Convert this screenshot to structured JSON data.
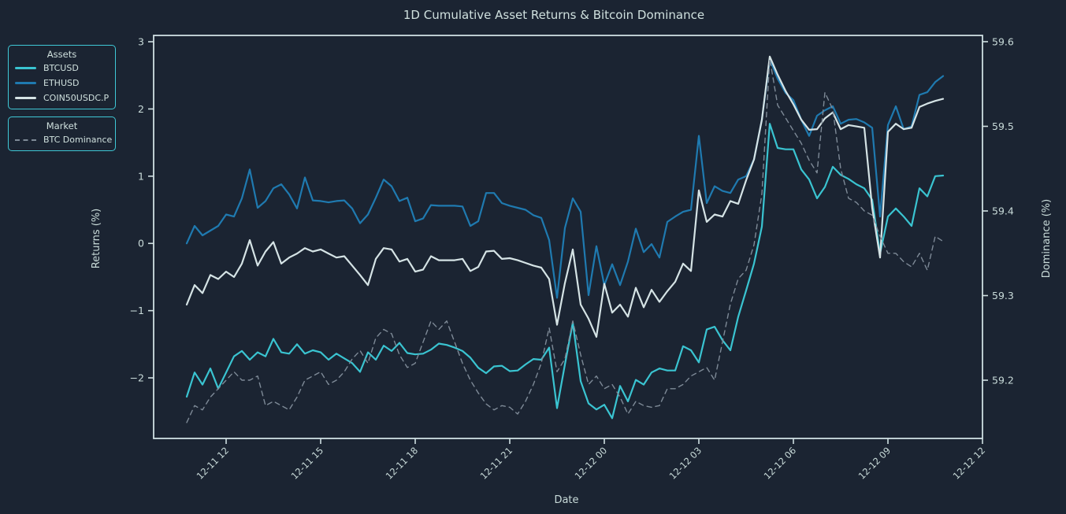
{
  "title": "1D Cumulative Asset Returns & Bitcoin Dominance",
  "colors": {
    "background": "#1b2432",
    "spine": "#cfdfe1",
    "tick_text": "#c9dbd9",
    "title_text": "#cfe0de",
    "legend_border": "#3fc8d6",
    "legend_text": "#cfe0dd"
  },
  "legend": {
    "assets": {
      "title": "Assets",
      "items": [
        {
          "label": "BTCUSD",
          "color": "#3ac4d1",
          "style": "solid"
        },
        {
          "label": "ETHUSD",
          "color": "#1f7ab0",
          "style": "solid"
        },
        {
          "label": "COIN50USDC.P",
          "color": "#d5e3e5",
          "style": "solid"
        }
      ]
    },
    "market": {
      "title": "Market",
      "items": [
        {
          "label": "BTC Dominance",
          "color": "#7e8a97",
          "style": "dashed"
        }
      ]
    }
  },
  "axes": {
    "x": {
      "label": "Date",
      "tick_hours": [
        12,
        15,
        18,
        21,
        24,
        27,
        30,
        33,
        36
      ],
      "tick_labels": [
        "12-11 12",
        "12-11 15",
        "12-11 18",
        "12-11 21",
        "12-12 00",
        "12-12 03",
        "12-12 06",
        "12-12 09",
        "12-12 12"
      ]
    },
    "left": {
      "label": "Returns (%)",
      "tick_values": [
        3,
        2,
        1,
        0,
        -1,
        -2
      ],
      "tick_labels": [
        "3",
        "2",
        "1",
        "0",
        "−1",
        "−2"
      ]
    },
    "right": {
      "label": "Dominance (%)",
      "tick_values": [
        59.6,
        59.5,
        59.4,
        59.3,
        59.2
      ],
      "tick_labels": [
        "59.6",
        "59.5",
        "59.4",
        "59.3",
        "59.2"
      ]
    }
  },
  "chart_data": {
    "type": "line",
    "x_unit": "hours since 12-11 00:00",
    "x_start_hour": 10.75,
    "x_step_hour": 0.25,
    "x_range_hours": [
      9.7,
      36.0
    ],
    "left_ylim": [
      -2.901,
      3.094
    ],
    "right_ylim": [
      59.1312,
      59.6074
    ],
    "grid": false,
    "legend_position": "outside-left",
    "series": [
      {
        "name": "BTCUSD",
        "axis": "left",
        "color": "#3ac4d1",
        "dash": null,
        "width": 2.2,
        "values": [
          -2.28,
          -1.92,
          -2.1,
          -1.86,
          -2.16,
          -1.92,
          -1.68,
          -1.6,
          -1.73,
          -1.62,
          -1.68,
          -1.42,
          -1.62,
          -1.64,
          -1.5,
          -1.64,
          -1.59,
          -1.62,
          -1.73,
          -1.64,
          -1.71,
          -1.78,
          -1.91,
          -1.62,
          -1.73,
          -1.52,
          -1.6,
          -1.48,
          -1.63,
          -1.65,
          -1.64,
          -1.58,
          -1.49,
          -1.51,
          -1.55,
          -1.6,
          -1.7,
          -1.85,
          -1.93,
          -1.83,
          -1.82,
          -1.9,
          -1.89,
          -1.8,
          -1.72,
          -1.73,
          -1.55,
          -2.45,
          -1.8,
          -1.18,
          -2.05,
          -2.38,
          -2.47,
          -2.4,
          -2.6,
          -2.12,
          -2.35,
          -2.03,
          -2.1,
          -1.92,
          -1.86,
          -1.89,
          -1.89,
          -1.53,
          -1.59,
          -1.77,
          -1.28,
          -1.24,
          -1.44,
          -1.59,
          -1.09,
          -0.7,
          -0.3,
          0.25,
          1.78,
          1.42,
          1.4,
          1.4,
          1.1,
          0.95,
          0.67,
          0.84,
          1.14,
          1.02,
          0.96,
          0.88,
          0.82,
          0.65,
          -0.15,
          0.4,
          0.52,
          0.4,
          0.26,
          0.82,
          0.7,
          1.0,
          1.01
        ]
      },
      {
        "name": "ETHUSD",
        "axis": "left",
        "color": "#1f7ab0",
        "dash": null,
        "width": 2.2,
        "values": [
          0.0,
          0.26,
          0.12,
          0.19,
          0.26,
          0.43,
          0.4,
          0.67,
          1.1,
          0.53,
          0.63,
          0.82,
          0.88,
          0.73,
          0.52,
          0.98,
          0.64,
          0.63,
          0.61,
          0.63,
          0.64,
          0.52,
          0.3,
          0.43,
          0.68,
          0.95,
          0.85,
          0.63,
          0.68,
          0.33,
          0.37,
          0.57,
          0.56,
          0.56,
          0.56,
          0.55,
          0.26,
          0.33,
          0.75,
          0.75,
          0.6,
          0.56,
          0.53,
          0.5,
          0.42,
          0.38,
          0.05,
          -0.81,
          0.23,
          0.67,
          0.47,
          -0.77,
          -0.04,
          -0.62,
          -0.31,
          -0.62,
          -0.27,
          0.22,
          -0.13,
          -0.01,
          -0.21,
          0.32,
          0.4,
          0.47,
          0.5,
          1.6,
          0.6,
          0.85,
          0.78,
          0.75,
          0.95,
          1.0,
          1.25,
          1.84,
          2.74,
          2.45,
          2.24,
          2.13,
          1.84,
          1.6,
          1.9,
          1.98,
          2.04,
          1.78,
          1.84,
          1.85,
          1.8,
          1.72,
          0.4,
          1.76,
          2.04,
          1.7,
          1.74,
          2.21,
          2.25,
          2.4,
          2.49
        ]
      },
      {
        "name": "COIN50USDC.P",
        "axis": "left",
        "color": "#d5e3e5",
        "dash": null,
        "width": 2.2,
        "values": [
          -0.91,
          -0.62,
          -0.74,
          -0.47,
          -0.53,
          -0.42,
          -0.5,
          -0.3,
          0.05,
          -0.33,
          -0.12,
          0.02,
          -0.3,
          -0.21,
          -0.15,
          -0.07,
          -0.12,
          -0.09,
          -0.15,
          -0.21,
          -0.19,
          -0.33,
          -0.47,
          -0.62,
          -0.23,
          -0.07,
          -0.09,
          -0.27,
          -0.23,
          -0.42,
          -0.39,
          -0.19,
          -0.25,
          -0.25,
          -0.25,
          -0.23,
          -0.41,
          -0.35,
          -0.12,
          -0.11,
          -0.23,
          -0.22,
          -0.25,
          -0.29,
          -0.33,
          -0.36,
          -0.53,
          -1.21,
          -0.59,
          -0.09,
          -0.91,
          -1.12,
          -1.39,
          -0.6,
          -1.03,
          -0.91,
          -1.09,
          -0.66,
          -0.95,
          -0.69,
          -0.87,
          -0.71,
          -0.57,
          -0.3,
          -0.41,
          0.79,
          0.32,
          0.43,
          0.4,
          0.63,
          0.59,
          0.94,
          1.25,
          1.84,
          2.78,
          2.51,
          2.27,
          2.07,
          1.84,
          1.69,
          1.7,
          1.86,
          1.95,
          1.7,
          1.76,
          1.74,
          1.72,
          0.53,
          -0.21,
          1.66,
          1.78,
          1.7,
          1.72,
          2.03,
          2.08,
          2.12,
          2.15
        ]
      },
      {
        "name": "BTC Dominance",
        "axis": "right",
        "color": "#7e8a97",
        "dash": [
          6,
          5
        ],
        "width": 1.4,
        "values": [
          59.15,
          59.17,
          59.165,
          59.18,
          59.19,
          59.2,
          59.21,
          59.2,
          59.2,
          59.205,
          59.17,
          59.175,
          59.17,
          59.165,
          59.18,
          59.2,
          59.205,
          59.21,
          59.195,
          59.2,
          59.21,
          59.225,
          59.235,
          59.22,
          59.25,
          59.26,
          59.255,
          59.23,
          59.215,
          59.22,
          59.245,
          59.27,
          59.26,
          59.27,
          59.245,
          59.22,
          59.2,
          59.185,
          59.172,
          59.165,
          59.17,
          59.168,
          59.16,
          59.175,
          59.195,
          59.22,
          59.262,
          59.21,
          59.225,
          59.27,
          59.23,
          59.195,
          59.205,
          59.19,
          59.195,
          59.18,
          59.16,
          59.175,
          59.17,
          59.168,
          59.17,
          59.19,
          59.19,
          59.195,
          59.205,
          59.21,
          59.215,
          59.2,
          59.245,
          59.29,
          59.32,
          59.33,
          59.36,
          59.42,
          59.58,
          59.525,
          59.51,
          59.495,
          59.48,
          59.46,
          59.445,
          59.54,
          59.52,
          59.45,
          59.415,
          59.41,
          59.4,
          59.395,
          59.37,
          59.35,
          59.35,
          59.34,
          59.334,
          59.35,
          59.33,
          59.37,
          59.364
        ]
      }
    ]
  }
}
